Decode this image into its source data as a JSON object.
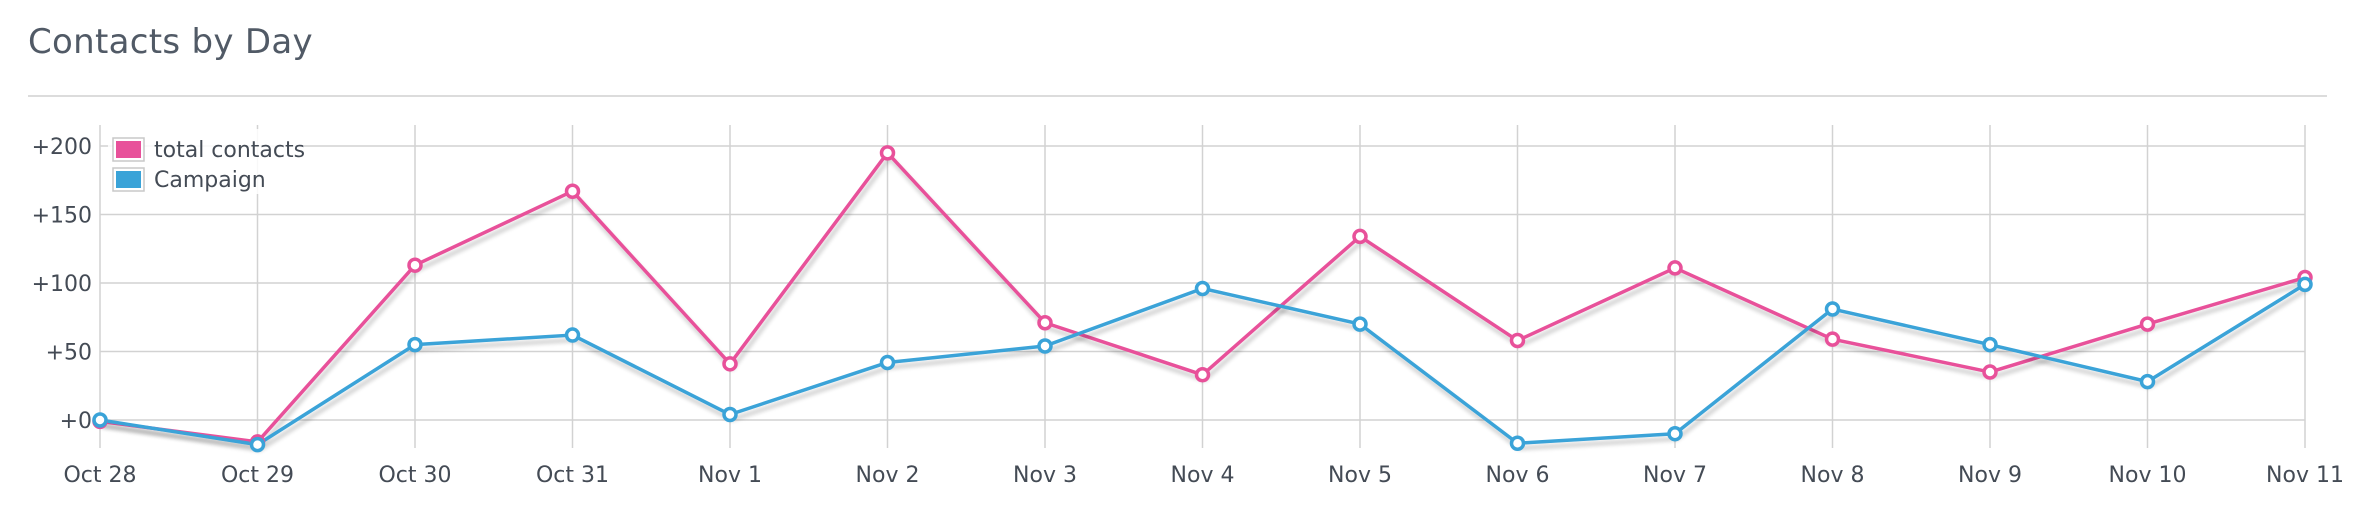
{
  "title": "Contacts by Day",
  "chart_data": {
    "type": "line",
    "title": "Contacts by Day",
    "xlabel": "",
    "ylabel": "",
    "categories": [
      "Oct 28",
      "Oct 29",
      "Oct 30",
      "Oct 31",
      "Nov 1",
      "Nov 2",
      "Nov 3",
      "Nov 4",
      "Nov 5",
      "Nov 6",
      "Nov 7",
      "Nov 8",
      "Nov 9",
      "Nov 10",
      "Nov 11"
    ],
    "y_ticks": [
      0,
      50,
      100,
      150,
      200
    ],
    "y_tick_labels": [
      "+0",
      "+50",
      "+100",
      "+150",
      "+200"
    ],
    "ylim": [
      -20,
      215
    ],
    "grid": true,
    "legend_position": "top-left",
    "series": [
      {
        "name": "total contacts",
        "color": "#e8519a",
        "values": [
          -1,
          -16,
          113,
          167,
          41,
          195,
          71,
          33,
          134,
          58,
          111,
          59,
          35,
          70,
          104
        ]
      },
      {
        "name": "Campaign",
        "color": "#3aa3d8",
        "values": [
          0,
          -18,
          55,
          62,
          4,
          42,
          54,
          96,
          70,
          -17,
          -10,
          81,
          55,
          28,
          99
        ]
      }
    ]
  }
}
